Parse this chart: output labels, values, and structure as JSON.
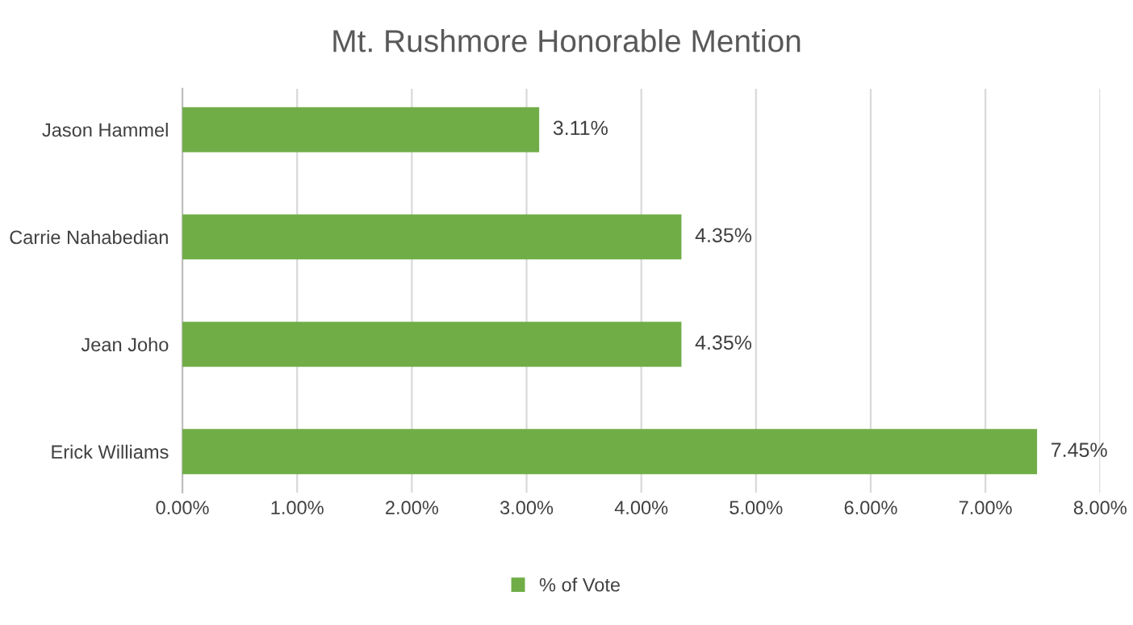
{
  "chart_data": {
    "type": "bar",
    "orientation": "horizontal",
    "title": "Mt. Rushmore Honorable Mention",
    "categories": [
      "Jason Hammel",
      "Carrie Nahabedian",
      "Jean Joho",
      "Erick Williams"
    ],
    "series": [
      {
        "name": "% of Vote",
        "color": "#70ad47",
        "values": [
          3.11,
          4.35,
          4.35,
          7.45
        ],
        "value_labels": [
          "3.11%",
          "4.35%",
          "4.35%",
          "7.45%"
        ]
      }
    ],
    "xlim": [
      0,
      8
    ],
    "xticks": [
      {
        "value": 0,
        "label": "0.00%"
      },
      {
        "value": 1,
        "label": "1.00%"
      },
      {
        "value": 2,
        "label": "2.00%"
      },
      {
        "value": 3,
        "label": "3.00%"
      },
      {
        "value": 4,
        "label": "4.00%"
      },
      {
        "value": 5,
        "label": "5.00%"
      },
      {
        "value": 6,
        "label": "6.00%"
      },
      {
        "value": 7,
        "label": "7.00%"
      },
      {
        "value": 8,
        "label": "8.00%"
      }
    ],
    "grid": "x",
    "legend": "bottom"
  }
}
